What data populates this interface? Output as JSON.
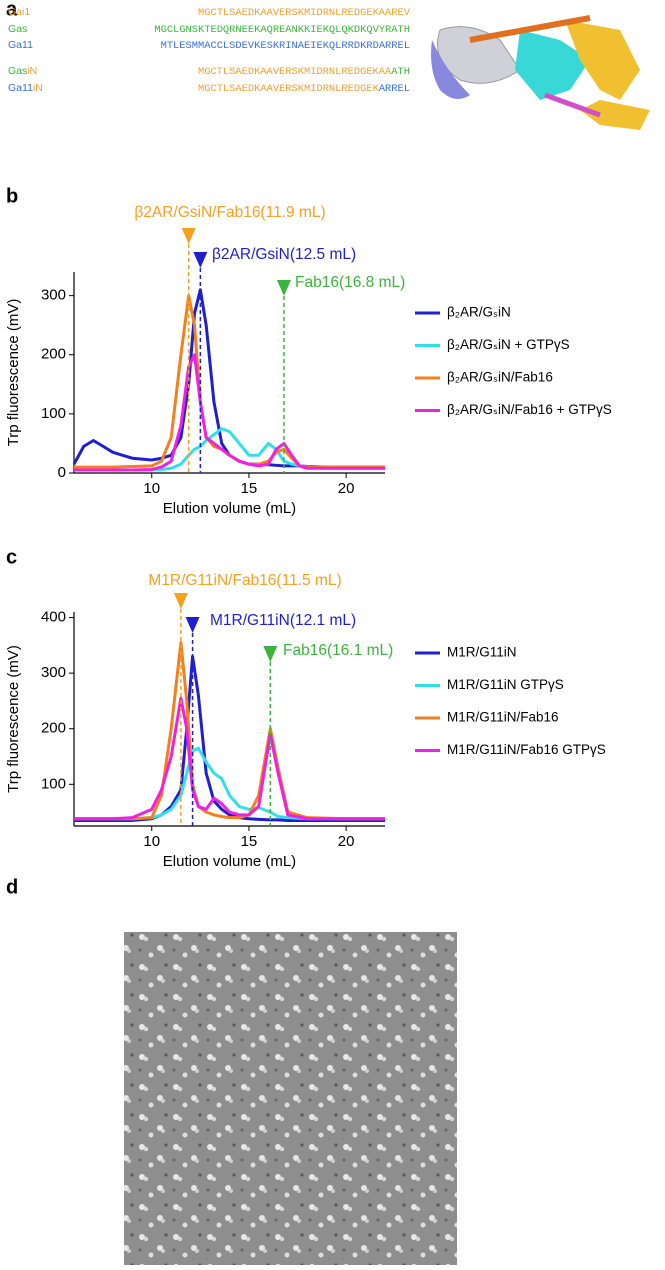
{
  "panel_labels": [
    "a",
    "b",
    "c",
    "d"
  ],
  "sequences": [
    {
      "name": [
        {
          "text": "Gai1",
          "color": "#f0a030"
        }
      ],
      "seq": [
        {
          "text": "MGCTLSAEDKAAVERSKMIDRNLREDGEKAAREV",
          "color": "#f0a030"
        }
      ]
    },
    {
      "name": [
        {
          "text": "Gas",
          "color": "#3cb43c"
        }
      ],
      "seq": [
        {
          "text": "MGCLGNSKTEDQRNEEKAQREANKKIEKQLQKDKQVYRATH",
          "color": "#3cb43c"
        }
      ]
    },
    {
      "name": [
        {
          "text": "Ga11",
          "color": "#3a6fd8"
        }
      ],
      "seq": [
        {
          "text": "MTLESMMACCLSDEVKESKRINAEIEKQLRRDKRDARREL",
          "color": "#3a6fd8"
        }
      ]
    },
    {
      "name": [
        {
          "text": "Gas",
          "color": "#3cb43c"
        },
        {
          "text": "iN",
          "color": "#f0a030"
        }
      ],
      "seq": [
        {
          "text": "MGCTLSAEDKAAVERSKMIDRNLREDGEKAA",
          "color": "#f0a030"
        },
        {
          "text": "ATH",
          "color": "#3cb43c"
        }
      ]
    },
    {
      "name": [
        {
          "text": "Ga11",
          "color": "#3a6fd8"
        },
        {
          "text": "iN",
          "color": "#f0a030"
        }
      ],
      "seq": [
        {
          "text": "MGCTLSAEDKAAVERSKMIDRNLREDGEK",
          "color": "#f0a030"
        },
        {
          "text": "ARREL",
          "color": "#3a6fd8"
        }
      ]
    }
  ],
  "chart_data": [
    {
      "type": "line",
      "ylabel": "Trp fluorescence (mV)",
      "xlabel": "Elution volume (mL)",
      "xlim": [
        6,
        22
      ],
      "xticks": [
        10,
        15,
        20
      ],
      "ylim": [
        0,
        340
      ],
      "yticks": [
        0,
        100,
        200,
        300
      ],
      "legend": "right",
      "x": [
        6,
        6.5,
        7,
        7.5,
        8,
        9,
        10,
        10.5,
        11,
        11.5,
        11.9,
        12.2,
        12.5,
        12.8,
        13.2,
        13.6,
        14,
        14.5,
        15,
        15.5,
        16,
        16.4,
        16.8,
        17.2,
        17.6,
        18,
        19,
        20,
        21,
        22
      ],
      "series": [
        {
          "name": "β₂AR/GₛiN",
          "color": "#1f1fd0",
          "values": [
            15,
            45,
            55,
            45,
            35,
            25,
            22,
            25,
            30,
            60,
            150,
            270,
            310,
            250,
            120,
            50,
            30,
            20,
            15,
            15,
            14,
            13,
            12,
            12,
            12,
            11,
            10,
            10,
            10,
            10
          ]
        },
        {
          "name": "β₂AR/GₛiN + GTPγS",
          "color": "#30e0e8",
          "values": [
            5,
            5,
            5,
            5,
            5,
            5,
            5,
            6,
            8,
            15,
            30,
            40,
            45,
            55,
            65,
            75,
            70,
            50,
            30,
            30,
            50,
            40,
            20,
            15,
            12,
            10,
            8,
            8,
            8,
            8
          ]
        },
        {
          "name": "β₂AR/GₛiN/Fab16",
          "color": "#f08020",
          "values": [
            10,
            10,
            10,
            10,
            10,
            11,
            12,
            20,
            60,
            200,
            300,
            250,
            120,
            60,
            45,
            40,
            30,
            20,
            15,
            15,
            20,
            35,
            40,
            25,
            12,
            10,
            10,
            10,
            10,
            10
          ]
        },
        {
          "name": "β₂AR/GₛiN/Fab16 + GTPγS",
          "color": "#f020e0",
          "values": [
            5,
            5,
            5,
            5,
            5,
            5,
            6,
            10,
            20,
            80,
            180,
            200,
            120,
            60,
            50,
            40,
            30,
            20,
            15,
            12,
            15,
            40,
            50,
            30,
            12,
            8,
            8,
            8,
            8,
            8
          ]
        }
      ],
      "annotations": [
        {
          "label": "β2AR/GsiN/Fab16(11.9 mL)",
          "x": 11.9,
          "color": "#f5a020"
        },
        {
          "label": "β2AR/GsiN(12.5 mL)",
          "x": 12.5,
          "color": "#1f1fd0"
        },
        {
          "label": "Fab16(16.8 mL)",
          "x": 16.8,
          "color": "#3cb43c"
        }
      ]
    },
    {
      "type": "line",
      "ylabel": "Trp fluorescence (mV)",
      "xlabel": "Elution volume (mL)",
      "xlim": [
        6,
        22
      ],
      "xticks": [
        10,
        15,
        20
      ],
      "ylim": [
        25,
        410
      ],
      "yticks": [
        100,
        200,
        300,
        400
      ],
      "legend": "right",
      "x": [
        6,
        8,
        9,
        10,
        10.5,
        11,
        11.5,
        11.8,
        12.1,
        12.4,
        12.8,
        13.2,
        13.6,
        14,
        14.5,
        15,
        15.5,
        16.1,
        16.5,
        17,
        18,
        20,
        22
      ],
      "series": [
        {
          "name": "M1R/G11iN",
          "color": "#1f1fd0",
          "values": [
            35,
            35,
            35,
            38,
            45,
            60,
            90,
            200,
            330,
            260,
            120,
            70,
            55,
            45,
            40,
            38,
            37,
            36,
            36,
            35,
            35,
            35,
            35
          ]
        },
        {
          "name": "M1R/G11iN GTPγS",
          "color": "#30e0e8",
          "values": [
            38,
            38,
            38,
            40,
            45,
            55,
            80,
            120,
            160,
            165,
            140,
            120,
            110,
            80,
            60,
            55,
            58,
            50,
            42,
            40,
            38,
            38,
            38
          ]
        },
        {
          "name": "M1R/G11iN/Fab16",
          "color": "#f08020",
          "values": [
            38,
            38,
            38,
            40,
            80,
            200,
            355,
            250,
            100,
            60,
            50,
            45,
            42,
            40,
            40,
            45,
            80,
            200,
            130,
            50,
            40,
            38,
            38
          ]
        },
        {
          "name": "M1R/G11iN/Fab16 GTPγS",
          "color": "#f020e0",
          "values": [
            38,
            38,
            40,
            55,
            90,
            150,
            255,
            200,
            90,
            60,
            55,
            75,
            65,
            50,
            45,
            45,
            60,
            190,
            120,
            45,
            38,
            38,
            38
          ]
        }
      ],
      "annotations": [
        {
          "label": "M1R/G11iN/Fab16(11.5 mL)",
          "x": 11.5,
          "color": "#f5a020"
        },
        {
          "label": "M1R/G11iN(12.1 mL)",
          "x": 12.1,
          "color": "#1f1fd0"
        },
        {
          "label": "Fab16(16.1 mL)",
          "x": 16.1,
          "color": "#3cb43c"
        }
      ]
    }
  ]
}
